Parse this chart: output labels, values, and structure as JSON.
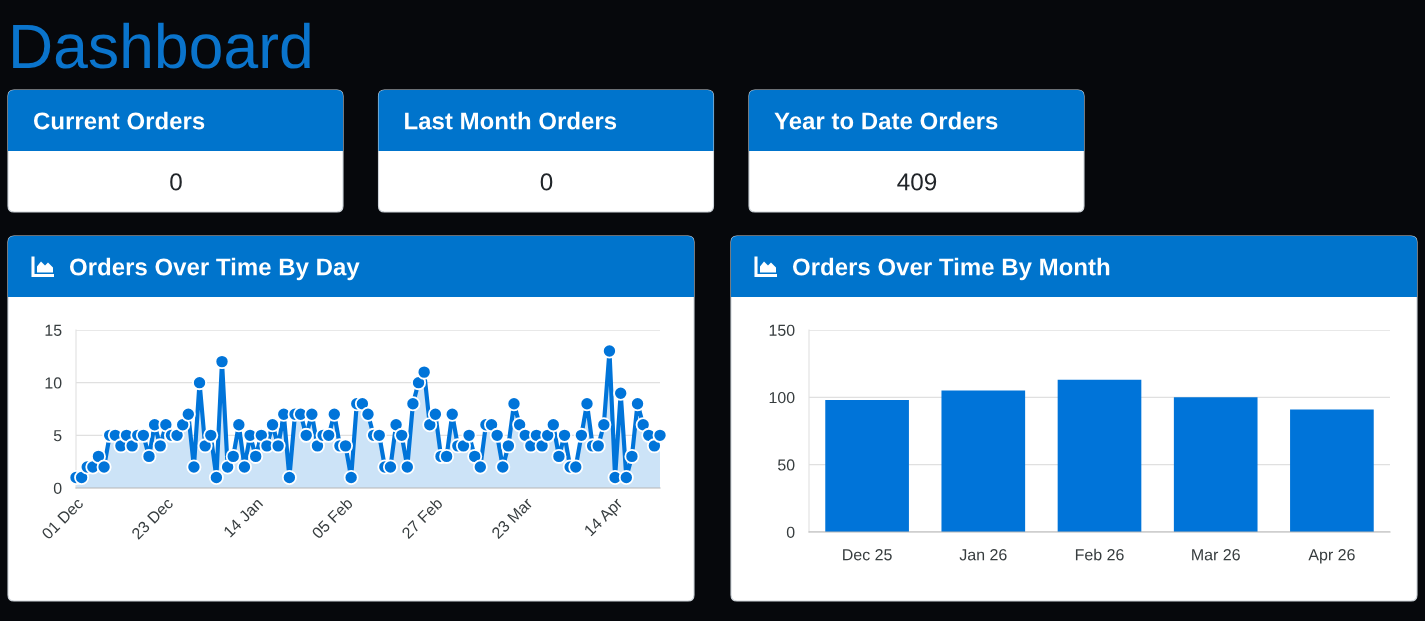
{
  "chart_data": [
    {
      "type": "other",
      "title": "Dashboard"
    },
    {
      "type": "other",
      "title": "Current Orders",
      "annotations": [
        "0"
      ]
    },
    {
      "type": "other",
      "title": "Last Month Orders",
      "annotations": [
        "0"
      ]
    },
    {
      "type": "other",
      "title": "Year to Date Orders",
      "annotations": [
        "409"
      ]
    },
    {
      "type": "area",
      "title": "Orders Over Time By Day",
      "categories": [
        "01 Dec",
        null,
        null,
        null,
        null,
        null,
        null,
        null,
        null,
        null,
        null,
        null,
        null,
        null,
        null,
        null,
        "23 Dec",
        null,
        null,
        null,
        null,
        null,
        null,
        null,
        null,
        null,
        null,
        null,
        null,
        null,
        null,
        null,
        "14 Jan",
        null,
        null,
        null,
        null,
        null,
        null,
        null,
        null,
        null,
        null,
        null,
        null,
        null,
        null,
        null,
        "05 Feb",
        null,
        null,
        null,
        null,
        null,
        null,
        null,
        null,
        null,
        null,
        null,
        null,
        null,
        null,
        null,
        "27 Feb",
        null,
        null,
        null,
        null,
        null,
        null,
        null,
        null,
        null,
        null,
        null,
        null,
        null,
        null,
        null,
        "23 Mar",
        null,
        null,
        null,
        null,
        null,
        null,
        null,
        null,
        null,
        null,
        null,
        null,
        null,
        null,
        null,
        "14 Apr",
        null,
        null,
        null,
        null,
        null,
        null,
        null,
        null
      ],
      "series": [
        {
          "color": "#0074d9",
          "values": [
            1,
            1,
            2,
            2,
            3,
            2,
            5,
            5,
            4,
            5,
            4,
            5,
            5,
            3,
            6,
            4,
            6,
            5,
            5,
            6,
            7,
            2,
            10,
            4,
            5,
            1,
            12,
            2,
            3,
            6,
            2,
            5,
            3,
            5,
            4,
            6,
            4,
            7,
            1,
            7,
            7,
            5,
            7,
            4,
            5,
            5,
            7,
            4,
            4,
            1,
            8,
            8,
            7,
            5,
            5,
            2,
            2,
            6,
            5,
            2,
            8,
            10,
            11,
            6,
            7,
            3,
            3,
            7,
            4,
            4,
            5,
            3,
            2,
            6,
            6,
            5,
            2,
            4,
            8,
            6,
            5,
            4,
            5,
            4,
            5,
            6,
            3,
            5,
            2,
            2,
            5,
            8,
            4,
            4,
            6,
            13,
            1,
            9,
            1,
            3,
            8,
            6,
            5,
            4,
            5
          ]
        }
      ],
      "ylim": [
        0,
        15
      ],
      "yticks": [
        0,
        5,
        10,
        15
      ],
      "grid": "y",
      "marker": "circle",
      "line_style": "solid"
    },
    {
      "type": "bar",
      "title": "Orders Over Time By Month",
      "categories": [
        "Dec 25",
        "Jan 26",
        "Feb 26",
        "Mar 26",
        "Apr 26"
      ],
      "series": [
        {
          "color": "#0074d9",
          "values": [
            98,
            105,
            113,
            100,
            91
          ]
        }
      ],
      "ylim": [
        0,
        150
      ],
      "yticks": [
        0,
        50,
        100,
        150
      ],
      "grid": "y"
    }
  ]
}
